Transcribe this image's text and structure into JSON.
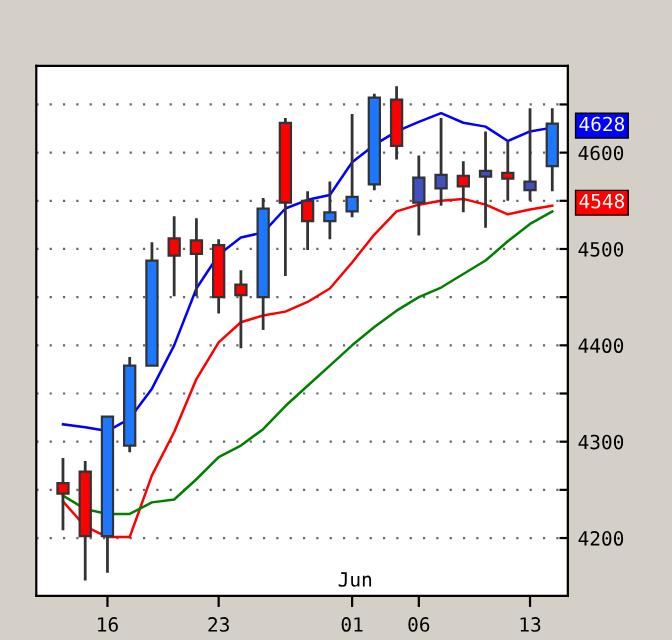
{
  "chart_data": {
    "type": "candlestick",
    "categories": [
      null,
      null,
      "16",
      null,
      null,
      null,
      null,
      "23",
      null,
      null,
      null,
      null,
      null,
      "01",
      null,
      null,
      "06",
      null,
      null,
      null,
      null,
      "13",
      null
    ],
    "ohlc": [
      [
        4257,
        4283,
        4208,
        4246
      ],
      [
        4269,
        4280,
        4156,
        4202
      ],
      [
        4202,
        4326,
        4164,
        4326
      ],
      [
        4296,
        4388,
        4289,
        4379
      ],
      [
        4379,
        4507,
        4379,
        4488
      ],
      [
        4511,
        4534,
        4451,
        4493
      ],
      [
        4509,
        4532,
        4451,
        4495
      ],
      [
        4504,
        4510,
        4433,
        4450
      ],
      [
        4463,
        4478,
        4397,
        4452
      ],
      [
        4450,
        4553,
        4416,
        4542
      ],
      [
        4631,
        4636,
        4472,
        4548
      ],
      [
        4550,
        4560,
        4499,
        4529
      ],
      [
        4529,
        4570,
        4510,
        4538
      ],
      [
        4539,
        4640,
        4533,
        4554
      ],
      [
        4567,
        4661,
        4561,
        4657
      ],
      [
        4655,
        4669,
        4593,
        4607
      ],
      [
        4548,
        4597,
        4514,
        4574
      ],
      [
        4563,
        4636,
        4545,
        4577
      ],
      [
        4576,
        4591,
        4538,
        4565
      ],
      [
        4575,
        4622,
        4522,
        4581
      ],
      [
        4579,
        4612,
        4550,
        4573
      ],
      [
        4561,
        4646,
        4550,
        4570
      ],
      [
        4586,
        4646,
        4560,
        4630
      ]
    ],
    "colors": [
      "#ff0000",
      "#ff0000",
      "#1e78ff",
      "#1e78ff",
      "#1e78ff",
      "#ff0000",
      "#ff0000",
      "#ff0000",
      "#ff0000",
      "#1e78ff",
      "#ff0000",
      "#ff0000",
      "#1e78ff",
      "#1e78ff",
      "#1e78ff",
      "#ff0000",
      "#4050c0",
      "#4050c0",
      "#ff0000",
      "#4050c0",
      "#ff0000",
      "#4050c0",
      "#1e78ff"
    ],
    "series": [
      {
        "type": "line",
        "color": "#0000ff",
        "values": [
          4318,
          4315,
          4311,
          4324,
          4355,
          4400,
          4459,
          4494,
          4512,
          4517,
          4542,
          4551,
          4556,
          4590,
          4608,
          4622,
          4632,
          4641,
          4631,
          4627,
          4612,
          4622,
          4626
        ]
      },
      {
        "type": "line",
        "color": "#ff0000",
        "values": [
          4238,
          4212,
          4201,
          4201,
          4265,
          4310,
          4365,
          4403,
          4424,
          4431,
          4435,
          4445,
          4459,
          4486,
          4515,
          4539,
          4546,
          4550,
          4552,
          4546,
          4536,
          4541,
          4545
        ]
      },
      {
        "type": "line",
        "color": "#008000",
        "values": [
          4244,
          4230,
          4225,
          4225,
          4237,
          4240,
          4261,
          4284,
          4296,
          4313,
          4337,
          4358,
          4379,
          4400,
          4419,
          4436,
          4450,
          4460,
          4474,
          4488,
          4508,
          4526,
          4539
        ]
      }
    ],
    "ylim": [
      4140,
      4690
    ],
    "yticks": [
      4200,
      {
        "value": 4250,
        "label": null
      },
      4300,
      {
        "value": 4350,
        "label": null
      },
      4400,
      {
        "value": 4450,
        "label": null
      },
      4500,
      {
        "value": 4550,
        "label": null
      },
      4600,
      {
        "value": 4650,
        "label": null
      }
    ],
    "grid": "y",
    "annotations": [
      "4628",
      "4548",
      "Jun"
    ]
  }
}
